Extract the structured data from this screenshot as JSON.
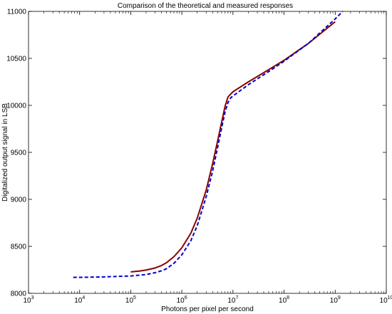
{
  "chart_data": {
    "type": "line",
    "title": "Comparison of the theoretical and measured responses",
    "xlabel": "Photons per pixel per second",
    "ylabel": "Digitalized output signal in LSB",
    "x_scale": "log",
    "xlim": [
      1000,
      10000000000
    ],
    "ylim": [
      8000,
      11000
    ],
    "x_tick_labels": [
      {
        "base": "10",
        "exp": "3"
      },
      {
        "base": "10",
        "exp": "4"
      },
      {
        "base": "10",
        "exp": "5"
      },
      {
        "base": "10",
        "exp": "6"
      },
      {
        "base": "10",
        "exp": "7"
      },
      {
        "base": "10",
        "exp": "8"
      },
      {
        "base": "10",
        "exp": "9"
      },
      {
        "base": "10",
        "exp": "10"
      }
    ],
    "y_ticks": [
      8000,
      8500,
      9000,
      9500,
      10000,
      10500,
      11000
    ],
    "y_tick_labels": [
      "8000",
      "8500",
      "9000",
      "9500",
      "10000",
      "10500",
      "11000"
    ],
    "grid": false,
    "series": [
      {
        "color": "#8b0000",
        "style": "solid",
        "points": [
          [
            100000,
            8228
          ],
          [
            150000,
            8238
          ],
          [
            200000,
            8248
          ],
          [
            300000,
            8270
          ],
          [
            400000,
            8296
          ],
          [
            500000,
            8326
          ],
          [
            700000,
            8390
          ],
          [
            1000000,
            8485
          ],
          [
            1500000,
            8640
          ],
          [
            2000000,
            8800
          ],
          [
            3000000,
            9100
          ],
          [
            4000000,
            9380
          ],
          [
            5000000,
            9620
          ],
          [
            6000000,
            9820
          ],
          [
            7000000,
            9990
          ],
          [
            8000000,
            10090
          ],
          [
            9000000,
            10120
          ],
          [
            10000000,
            10145
          ],
          [
            20000000,
            10250
          ],
          [
            50000000,
            10380
          ],
          [
            100000000,
            10480
          ],
          [
            300000000,
            10660
          ],
          [
            1000000000,
            10890
          ]
        ]
      },
      {
        "color": "#0000cc",
        "style": "dashed",
        "points": [
          [
            7500,
            8170
          ],
          [
            10000,
            8170
          ],
          [
            30000,
            8175
          ],
          [
            100000,
            8185
          ],
          [
            200000,
            8200
          ],
          [
            300000,
            8220
          ],
          [
            400000,
            8240
          ],
          [
            500000,
            8262
          ],
          [
            700000,
            8320
          ],
          [
            1000000,
            8410
          ],
          [
            1500000,
            8560
          ],
          [
            2000000,
            8720
          ],
          [
            3000000,
            9030
          ],
          [
            4000000,
            9300
          ],
          [
            5000000,
            9550
          ],
          [
            6000000,
            9760
          ],
          [
            7000000,
            9930
          ],
          [
            8000000,
            10030
          ],
          [
            9000000,
            10080
          ],
          [
            10000000,
            10100
          ],
          [
            20000000,
            10220
          ],
          [
            50000000,
            10360
          ],
          [
            100000000,
            10470
          ],
          [
            300000000,
            10660
          ],
          [
            1000000000,
            10920
          ],
          [
            1400000000,
            11000
          ]
        ]
      }
    ]
  }
}
